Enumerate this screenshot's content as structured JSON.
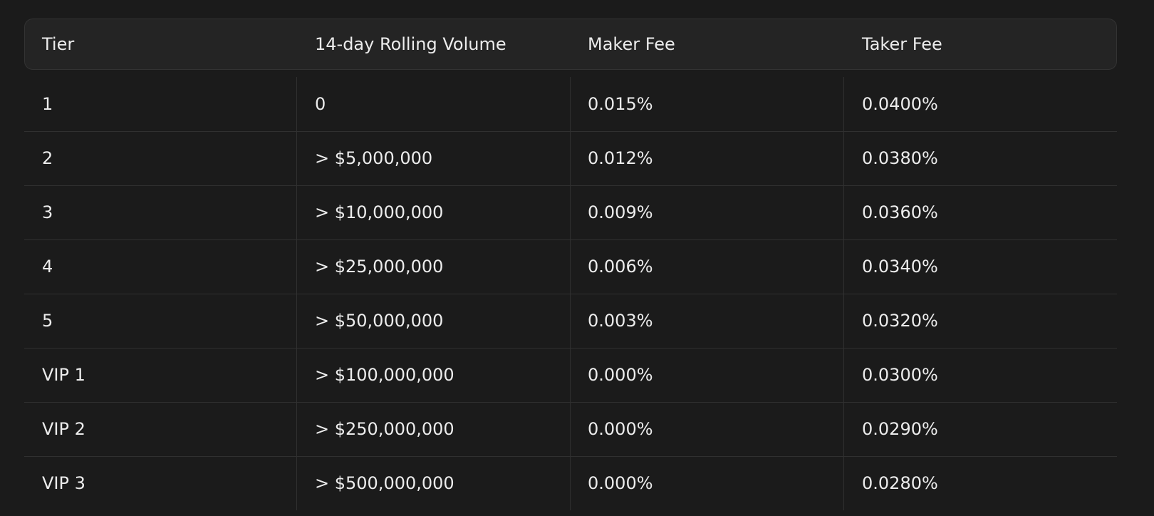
{
  "table": {
    "headers": [
      "Tier",
      "14-day Rolling Volume",
      "Maker Fee",
      "Taker Fee"
    ],
    "rows": [
      [
        "1",
        "0",
        "0.015%",
        "0.0400%"
      ],
      [
        "2",
        "> $5,000,000",
        "0.012%",
        "0.0380%"
      ],
      [
        "3",
        "> $10,000,000",
        "0.009%",
        "0.0360%"
      ],
      [
        "4",
        "> $25,000,000",
        "0.006%",
        "0.0340%"
      ],
      [
        "5",
        "> $50,000,000",
        "0.003%",
        "0.0320%"
      ],
      [
        "VIP 1",
        "> $100,000,000",
        "0.000%",
        "0.0300%"
      ],
      [
        "VIP 2",
        "> $250,000,000",
        "0.000%",
        "0.0290%"
      ],
      [
        "VIP 3",
        "> $500,000,000",
        "0.000%",
        "0.0280%"
      ]
    ]
  }
}
